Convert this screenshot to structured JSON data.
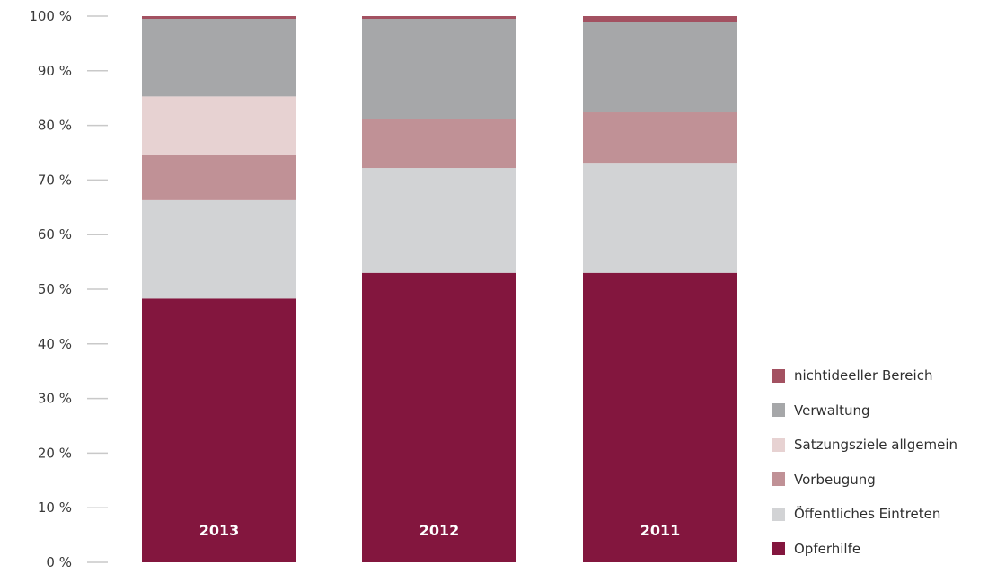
{
  "chart_data": {
    "type": "bar",
    "stacked": true,
    "categories": [
      "2013",
      "2012",
      "2011"
    ],
    "series": [
      {
        "name": "Opferhilfe",
        "color": "#83163e",
        "values": [
          48.3,
          53.0,
          53.0
        ]
      },
      {
        "name": "Öffentliches Eintreten",
        "color": "#d2d3d5",
        "values": [
          18.0,
          19.2,
          20.0
        ]
      },
      {
        "name": "Vorbeugung",
        "color": "#c09196",
        "values": [
          8.3,
          9.0,
          9.4
        ]
      },
      {
        "name": "Satzungsziele allgemein",
        "color": "#e7d2d2",
        "values": [
          10.7,
          0,
          0
        ]
      },
      {
        "name": "Verwaltung",
        "color": "#a6a7a9",
        "values": [
          14.2,
          18.3,
          16.6
        ]
      },
      {
        "name": "nichtideeller Bereich",
        "color": "#a35161",
        "values": [
          0.5,
          0.5,
          1.0
        ]
      }
    ],
    "yticks": [
      "0 %",
      "10 %",
      "20 %",
      "30 %",
      "40 %",
      "50 %",
      "60 %",
      "70 %",
      "80 %",
      "90 %",
      "100 %"
    ],
    "ylim": [
      0,
      100
    ],
    "grid": false,
    "legend": {
      "position": "bottom-right",
      "order": [
        "nichtideeller Bereich",
        "Verwaltung",
        "Satzungsziele allgemein",
        "Vorbeugung",
        "Öffentliches Eintreten",
        "Opferhilfe"
      ]
    },
    "title": "",
    "xlabel": "",
    "ylabel": ""
  }
}
